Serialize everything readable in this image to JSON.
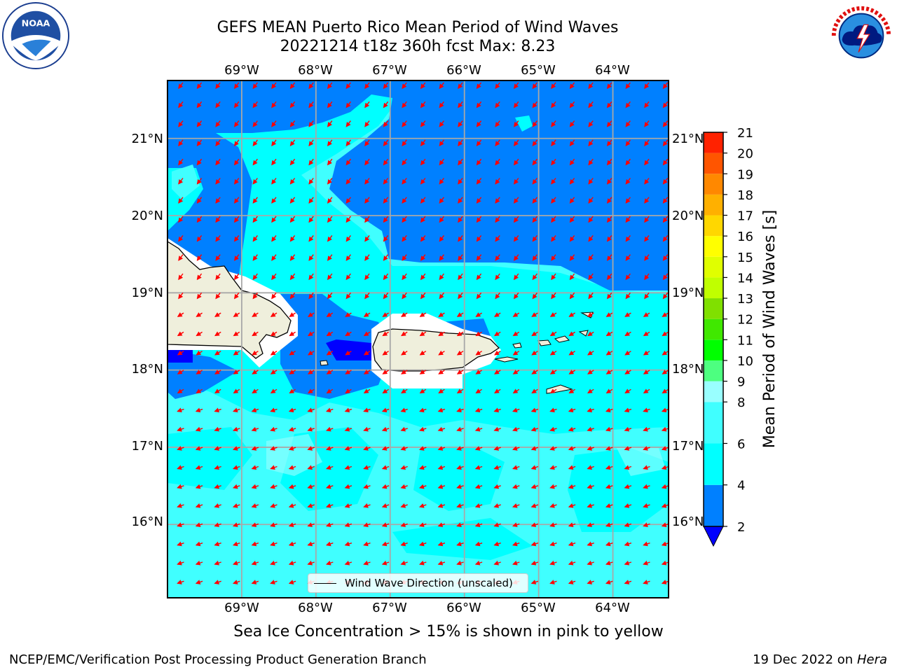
{
  "header": {
    "title_line1": "GEFS MEAN Puerto Rico Mean Period of Wind Waves",
    "title_line2": "20221214 t18z 360h fcst   Max: 8.23"
  },
  "logos": {
    "left": {
      "name": "NOAA",
      "ring_text": "NATIONAL OCEANIC AND ATMOSPHERIC ADMINISTRATION · U.S. DEPARTMENT OF COMMERCE"
    },
    "right": {
      "name": "NATIONAL WEATHER SERVICE"
    }
  },
  "map": {
    "lon_labels": [
      "69°W",
      "68°W",
      "67°W",
      "66°W",
      "65°W",
      "64°W"
    ],
    "lat_labels": [
      "21°N",
      "20°N",
      "19°N",
      "18°N",
      "17°N",
      "16°N"
    ],
    "lon_range": [
      -70.0,
      -63.25
    ],
    "lat_range": [
      15.05,
      21.75
    ],
    "legend_text": "Wind Wave Direction (unscaled)",
    "arrow_color": "#ff0000",
    "land_color": "#efefdc"
  },
  "colorbar": {
    "title": "Mean Period of Wind Waves [s]",
    "ticks": [
      "2",
      "4",
      "6",
      "8",
      "9",
      "10",
      "11",
      "12",
      "13",
      "14",
      "15",
      "16",
      "17",
      "18",
      "19",
      "20",
      "21"
    ],
    "colors": [
      "#0080ff",
      "#00ffff",
      "#40ffff",
      "#99ffff",
      "#4dff80",
      "#00ff00",
      "#40e800",
      "#80e000",
      "#c0ff00",
      "#e0ff00",
      "#ffff00",
      "#ffd700",
      "#ffb000",
      "#ff8800",
      "#ff5500",
      "#ff2200"
    ],
    "under_color": "#0000ff"
  },
  "footer": {
    "note": "Sea Ice Concentration > 15% is shown in pink to yellow",
    "left": "NCEP/EMC/Verification Post Processing Product Generation Branch",
    "right_date": "19 Dec 2022 on",
    "right_machine": "Hera"
  }
}
